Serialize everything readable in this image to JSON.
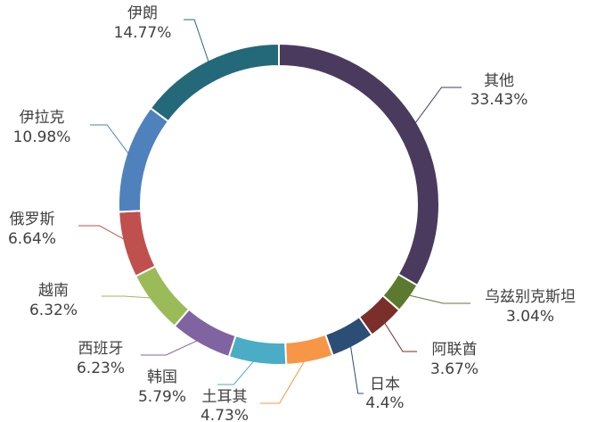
{
  "chart_data": {
    "type": "pie",
    "style": "donut",
    "legend": "none",
    "slices": [
      {
        "name": "其他",
        "value": 33.43,
        "label": "33.43%",
        "color": "#4a3b5e"
      },
      {
        "name": "乌兹别克斯坦",
        "value": 3.04,
        "label": "3.04%",
        "color": "#5c7a2f"
      },
      {
        "name": "阿联酋",
        "value": 3.67,
        "label": "3.67%",
        "color": "#7a2f2b"
      },
      {
        "name": "日本",
        "value": 4.4,
        "label": "4.4%",
        "color": "#2c4d74"
      },
      {
        "name": "土耳其",
        "value": 4.73,
        "label": "4.73%",
        "color": "#f79646"
      },
      {
        "name": "韩国",
        "value": 5.79,
        "label": "5.79%",
        "color": "#4bacc6"
      },
      {
        "name": "西班牙",
        "value": 6.23,
        "label": "6.23%",
        "color": "#8064a2"
      },
      {
        "name": "越南",
        "value": 6.32,
        "label": "6.32%",
        "color": "#9bbb59"
      },
      {
        "name": "俄罗斯",
        "value": 6.64,
        "label": "6.64%",
        "color": "#c0504d"
      },
      {
        "name": "伊拉克",
        "value": 10.98,
        "label": "10.98%",
        "color": "#4f81bd"
      },
      {
        "name": "伊朗",
        "value": 14.77,
        "label": "14.77%",
        "color": "#23697a"
      }
    ]
  }
}
